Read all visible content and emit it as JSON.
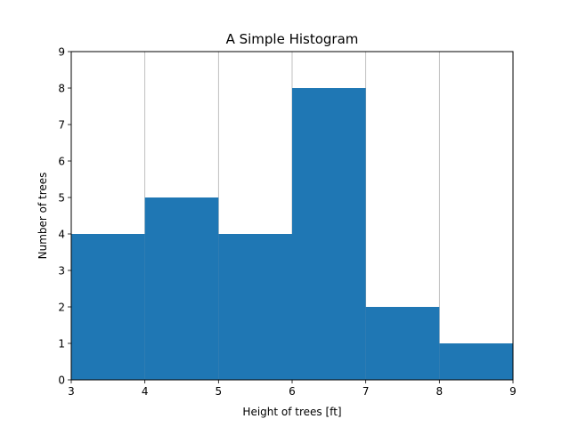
{
  "chart_data": {
    "type": "bar",
    "title": "A Simple Histogram",
    "xlabel": "Height of trees [ft]",
    "ylabel": "Number of trees",
    "bins": [
      {
        "x0": 3,
        "x1": 4,
        "count": 4
      },
      {
        "x0": 4,
        "x1": 5,
        "count": 5
      },
      {
        "x0": 5,
        "x1": 6,
        "count": 4
      },
      {
        "x0": 6,
        "x1": 7,
        "count": 8
      },
      {
        "x0": 7,
        "x1": 8,
        "count": 2
      },
      {
        "x0": 8,
        "x1": 9,
        "count": 1
      }
    ],
    "xlim": [
      3,
      9
    ],
    "ylim": [
      0,
      9
    ],
    "xticks": [
      "3",
      "4",
      "5",
      "6",
      "7",
      "8",
      "9"
    ],
    "yticks": [
      "0",
      "1",
      "2",
      "3",
      "4",
      "5",
      "6",
      "7",
      "8",
      "9"
    ],
    "grid": "x-major",
    "bar_color": "#1f77b4",
    "grid_color": "#b0b0b0"
  }
}
